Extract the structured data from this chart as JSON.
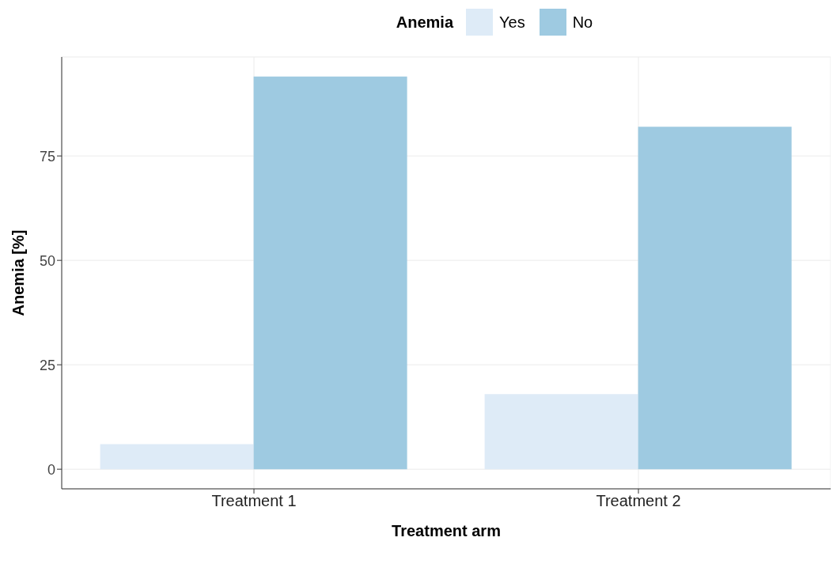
{
  "chart_data": {
    "type": "bar",
    "xlabel": "Treatment arm",
    "ylabel": "Anemia [%]",
    "legend_title": "Anemia",
    "categories": [
      "Treatment 1",
      "Treatment 2"
    ],
    "series": [
      {
        "name": "Yes",
        "color": "#deebf7",
        "values": [
          6,
          18
        ]
      },
      {
        "name": "No",
        "color": "#9ecae1",
        "values": [
          94,
          82
        ]
      }
    ],
    "ylim": [
      -4.7,
      98.7
    ],
    "yticks": [
      0,
      25,
      50,
      75
    ],
    "grid": true,
    "legend": "top"
  }
}
